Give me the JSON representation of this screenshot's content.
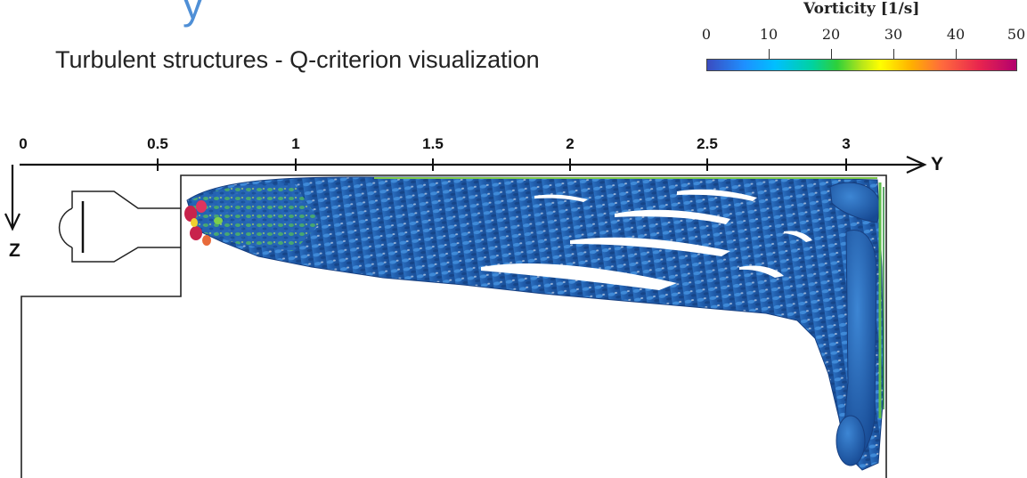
{
  "title_fragment": "y",
  "subtitle": "Turbulent structures - Q-criterion visualization",
  "colorbar": {
    "title": "Vorticity [1/s]",
    "ticks": [
      "0",
      "10",
      "20",
      "30",
      "40",
      "50"
    ],
    "min": 0,
    "max": 50,
    "colors": [
      "#3b4cc0",
      "#1e90ff",
      "#00bfff",
      "#2ed03a",
      "#ffff00",
      "#ff6a3d",
      "#b3006e"
    ]
  },
  "axes": {
    "y_ticks": [
      "0",
      "0.5",
      "1",
      "1.5",
      "2",
      "2.5",
      "3"
    ],
    "y_name": "Y",
    "z_name": "Z"
  },
  "structure_colors": {
    "primary": "#1f5aa8",
    "light": "#3d86d4",
    "high": "#c8234c",
    "mid": "#7fd04a"
  }
}
